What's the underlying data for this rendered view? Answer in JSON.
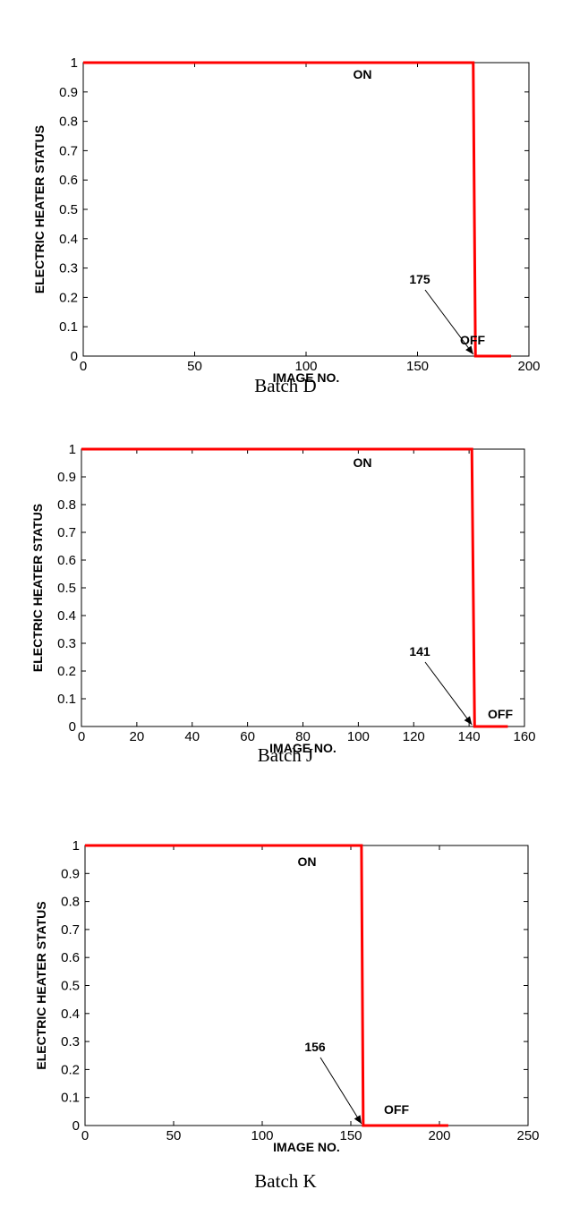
{
  "chart_data": [
    {
      "type": "line",
      "caption": "Batch D",
      "xlabel": "IMAGE NO.",
      "ylabel": "ELECTRIC HEATER STATUS",
      "xlim": [
        0,
        200
      ],
      "ylim": [
        0,
        1
      ],
      "xticks": [
        "0",
        "50",
        "100",
        "150",
        "200"
      ],
      "yticks": [
        "0",
        "0.1",
        "0.2",
        "0.3",
        "0.4",
        "0.5",
        "0.6",
        "0.7",
        "0.8",
        "0.9",
        "1"
      ],
      "grid": false,
      "line_color": "#ff0000",
      "series": [
        {
          "x": [
            0,
            175,
            176,
            192
          ],
          "y": [
            1,
            1,
            0,
            0
          ]
        }
      ],
      "annotations": {
        "on_label": "ON",
        "off_label": "OFF",
        "switch_label": "175",
        "switch_x": 175
      }
    },
    {
      "type": "line",
      "caption": "Batch J",
      "xlabel": "IMAGE NO.",
      "ylabel": "ELECTRIC HEATER STATUS",
      "xlim": [
        0,
        160
      ],
      "ylim": [
        0,
        1
      ],
      "xticks": [
        "0",
        "20",
        "40",
        "60",
        "80",
        "100",
        "120",
        "140",
        "160"
      ],
      "yticks": [
        "0",
        "0.1",
        "0.2",
        "0.3",
        "0.4",
        "0.5",
        "0.6",
        "0.7",
        "0.8",
        "0.9",
        "1"
      ],
      "grid": false,
      "line_color": "#ff0000",
      "series": [
        {
          "x": [
            0,
            141,
            142,
            154
          ],
          "y": [
            1,
            1,
            0,
            0
          ]
        }
      ],
      "annotations": {
        "on_label": "ON",
        "off_label": "OFF",
        "switch_label": "141",
        "switch_x": 141
      }
    },
    {
      "type": "line",
      "caption": "Batch K",
      "xlabel": "IMAGE NO.",
      "ylabel": "ELECTRIC HEATER STATUS",
      "xlim": [
        0,
        250
      ],
      "ylim": [
        0,
        1
      ],
      "xticks": [
        "0",
        "50",
        "100",
        "150",
        "200",
        "250"
      ],
      "yticks": [
        "0",
        "0.1",
        "0.2",
        "0.3",
        "0.4",
        "0.5",
        "0.6",
        "0.7",
        "0.8",
        "0.9",
        "1"
      ],
      "grid": false,
      "line_color": "#ff0000",
      "series": [
        {
          "x": [
            0,
            156,
            157,
            205
          ],
          "y": [
            1,
            1,
            0,
            0
          ]
        }
      ],
      "annotations": {
        "on_label": "ON",
        "off_label": "OFF",
        "switch_label": "156",
        "switch_x": 156
      }
    }
  ]
}
